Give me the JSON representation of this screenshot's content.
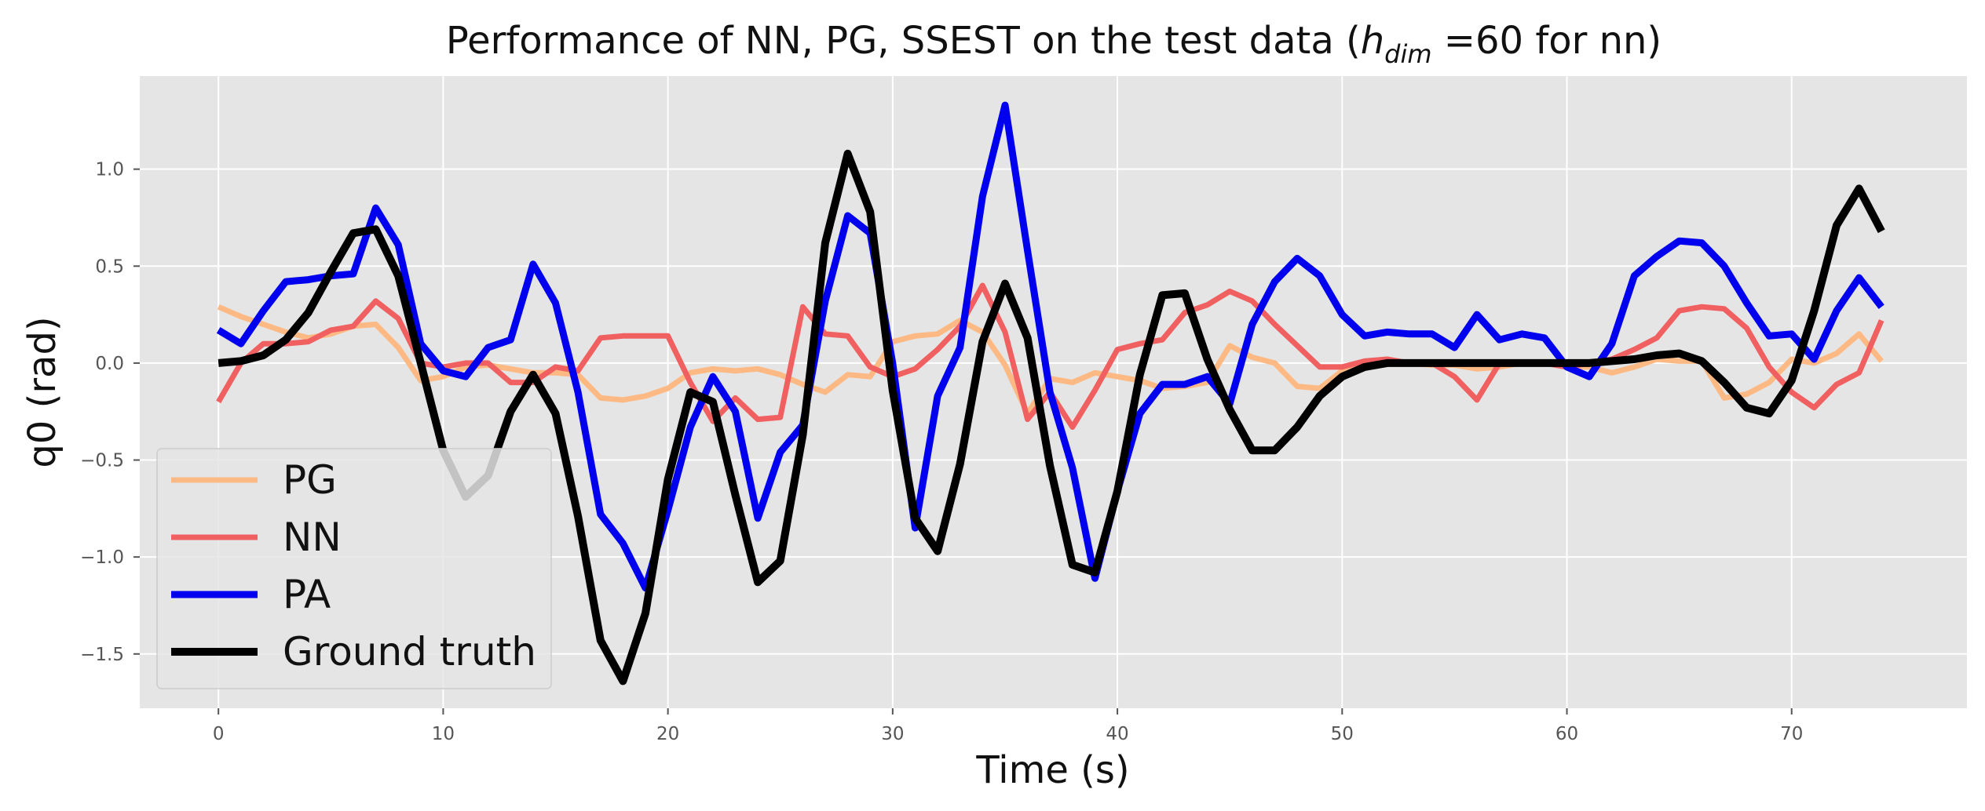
{
  "chart_data": {
    "type": "line",
    "title_main": "Performance of NN, PG, SSEST on the test data (",
    "title_math_base": "h",
    "title_math_sub": "dim",
    "title_tail": " =60 for nn)",
    "xlabel": "Time (s)",
    "ylabel": "q0 (rad)",
    "xlim": [
      -3.5,
      77.8
    ],
    "ylim": [
      -1.78,
      1.48
    ],
    "xticks": [
      0,
      10,
      20,
      30,
      40,
      50,
      60,
      70
    ],
    "yticks": [
      1.0,
      0.5,
      0.0,
      -0.5,
      -1.0,
      -1.5
    ],
    "ytick_labels": [
      "1.0",
      "0.5",
      "0.0",
      "−0.5",
      "−1.0",
      "−1.5"
    ],
    "grid": true,
    "legend_position": "lower-left",
    "x": [
      0,
      1,
      2,
      3,
      4,
      5,
      6,
      7,
      8,
      9,
      10,
      11,
      12,
      13,
      14,
      15,
      16,
      17,
      18,
      19,
      20,
      21,
      22,
      23,
      24,
      25,
      26,
      27,
      28,
      29,
      30,
      31,
      32,
      33,
      34,
      35,
      36,
      37,
      38,
      39,
      40,
      41,
      42,
      43,
      44,
      45,
      46,
      47,
      48,
      49,
      50,
      51,
      52,
      53,
      54,
      55,
      56,
      57,
      58,
      59,
      60,
      61,
      62,
      63,
      64,
      65,
      66,
      67,
      68,
      69,
      70,
      71,
      72,
      73,
      74
    ],
    "series": [
      {
        "name": "PG",
        "color": "#fdb983",
        "width": 7,
        "values": [
          0.29,
          0.24,
          0.2,
          0.16,
          0.13,
          0.15,
          0.19,
          0.2,
          0.08,
          -0.09,
          -0.07,
          -0.02,
          -0.01,
          -0.03,
          -0.05,
          -0.05,
          -0.06,
          -0.18,
          -0.19,
          -0.17,
          -0.13,
          -0.05,
          -0.03,
          -0.04,
          -0.03,
          -0.06,
          -0.11,
          -0.15,
          -0.06,
          -0.07,
          0.11,
          0.14,
          0.15,
          0.22,
          0.16,
          -0.01,
          -0.26,
          -0.08,
          -0.1,
          -0.05,
          -0.07,
          -0.09,
          -0.13,
          -0.12,
          -0.1,
          0.09,
          0.03,
          0.0,
          -0.12,
          -0.13,
          -0.04,
          -0.01,
          0.0,
          0.0,
          -0.01,
          -0.01,
          -0.03,
          -0.02,
          0.0,
          0.0,
          -0.02,
          -0.02,
          -0.05,
          -0.02,
          0.02,
          0.01,
          0.01,
          -0.18,
          -0.16,
          -0.1,
          0.02,
          0.0,
          0.05,
          0.15,
          0.01
        ]
      },
      {
        "name": "NN",
        "color": "#f06060",
        "width": 7,
        "values": [
          -0.2,
          0.0,
          0.1,
          0.1,
          0.11,
          0.17,
          0.19,
          0.32,
          0.23,
          0.0,
          -0.02,
          0.0,
          0.0,
          -0.1,
          -0.1,
          -0.02,
          -0.04,
          0.13,
          0.14,
          0.14,
          0.14,
          -0.1,
          -0.3,
          -0.18,
          -0.29,
          -0.28,
          0.29,
          0.15,
          0.14,
          -0.02,
          -0.07,
          -0.03,
          0.07,
          0.19,
          0.4,
          0.16,
          -0.29,
          -0.15,
          -0.33,
          -0.14,
          0.07,
          0.1,
          0.12,
          0.26,
          0.3,
          0.37,
          0.32,
          0.2,
          0.09,
          -0.02,
          -0.02,
          0.01,
          0.02,
          0.0,
          0.0,
          -0.07,
          -0.19,
          0.0,
          0.0,
          0.0,
          -0.02,
          0.0,
          0.02,
          0.07,
          0.13,
          0.27,
          0.29,
          0.28,
          0.18,
          -0.02,
          -0.15,
          -0.23,
          -0.11,
          -0.05,
          0.22
        ]
      },
      {
        "name": "PA",
        "color": "#0000ee",
        "width": 9,
        "values": [
          0.17,
          0.1,
          0.27,
          0.42,
          0.43,
          0.45,
          0.46,
          0.8,
          0.61,
          0.1,
          -0.04,
          -0.07,
          0.08,
          0.12,
          0.51,
          0.31,
          -0.15,
          -0.78,
          -0.93,
          -1.16,
          -0.76,
          -0.33,
          -0.07,
          -0.25,
          -0.8,
          -0.46,
          -0.32,
          0.32,
          0.76,
          0.67,
          0.0,
          -0.85,
          -0.17,
          0.08,
          0.86,
          1.33,
          0.58,
          -0.15,
          -0.54,
          -1.11,
          -0.66,
          -0.26,
          -0.11,
          -0.11,
          -0.07,
          -0.21,
          0.2,
          0.42,
          0.54,
          0.45,
          0.25,
          0.14,
          0.16,
          0.15,
          0.15,
          0.08,
          0.25,
          0.12,
          0.15,
          0.13,
          -0.02,
          -0.07,
          0.1,
          0.45,
          0.55,
          0.63,
          0.62,
          0.5,
          0.31,
          0.14,
          0.15,
          0.02,
          0.27,
          0.44,
          0.29
        ]
      },
      {
        "name": "Ground truth",
        "color": "#000000",
        "width": 10,
        "values": [
          0.0,
          0.01,
          0.04,
          0.12,
          0.26,
          0.47,
          0.67,
          0.69,
          0.45,
          0.0,
          -0.45,
          -0.69,
          -0.58,
          -0.25,
          -0.06,
          -0.26,
          -0.79,
          -1.43,
          -1.64,
          -1.29,
          -0.6,
          -0.15,
          -0.2,
          -0.68,
          -1.13,
          -1.02,
          -0.37,
          0.62,
          1.08,
          0.78,
          -0.14,
          -0.8,
          -0.97,
          -0.52,
          0.11,
          0.41,
          0.13,
          -0.53,
          -1.04,
          -1.08,
          -0.66,
          -0.06,
          0.35,
          0.36,
          0.02,
          -0.24,
          -0.45,
          -0.45,
          -0.33,
          -0.17,
          -0.07,
          -0.02,
          0.0,
          0.0,
          0.0,
          0.0,
          0.0,
          0.0,
          0.0,
          0.0,
          0.0,
          0.0,
          0.01,
          0.02,
          0.04,
          0.05,
          0.01,
          -0.1,
          -0.23,
          -0.26,
          -0.09,
          0.27,
          0.71,
          0.9,
          0.68
        ]
      }
    ]
  }
}
